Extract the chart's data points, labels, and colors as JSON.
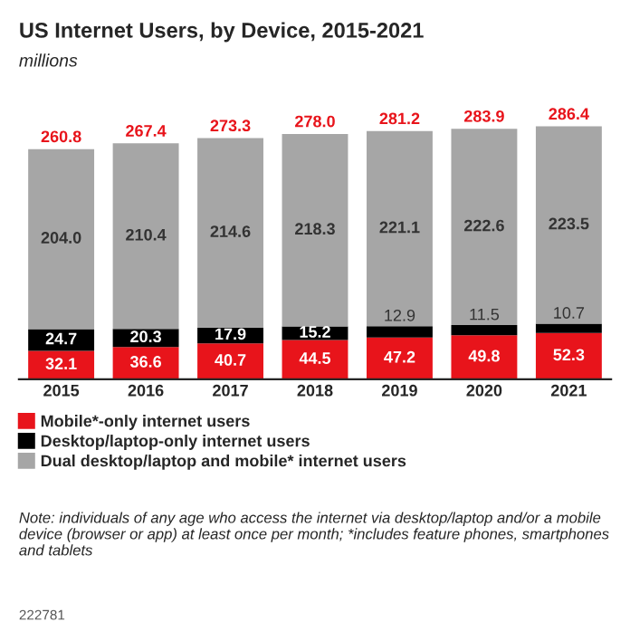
{
  "chart_data": {
    "type": "bar",
    "title": "US Internet Users, by Device, 2015-2021",
    "subtitle": "millions",
    "categories": [
      "2015",
      "2016",
      "2017",
      "2018",
      "2019",
      "2020",
      "2021"
    ],
    "stacked": true,
    "legend": "bottom",
    "series": [
      {
        "name": "Mobile*-only internet users",
        "color": "#e8141b",
        "values": [
          32.1,
          36.6,
          40.7,
          44.5,
          47.2,
          49.8,
          52.3
        ],
        "value_labels": [
          "32.1",
          "36.6",
          "40.7",
          "44.5",
          "47.2",
          "49.8",
          "52.3"
        ]
      },
      {
        "name": "Desktop/laptop-only internet users",
        "color": "#000000",
        "values": [
          24.7,
          20.3,
          17.9,
          15.2,
          12.9,
          11.5,
          10.7
        ],
        "value_labels": [
          "24.7",
          "20.3",
          "17.9",
          "15.2",
          "12.9",
          "11.5",
          "10.7"
        ]
      },
      {
        "name": "Dual desktop/laptop and mobile* internet users",
        "color": "#a6a6a6",
        "values": [
          204.0,
          210.4,
          214.6,
          218.3,
          221.1,
          222.6,
          223.5
        ],
        "value_labels": [
          "204.0",
          "210.4",
          "214.6",
          "218.3",
          "221.1",
          "222.6",
          "223.5"
        ]
      }
    ],
    "totals": [
      "260.8",
      "267.4",
      "273.3",
      "278.0",
      "281.2",
      "283.9",
      "286.4"
    ],
    "annotations": [
      "Note: individuals of any age who access the internet via desktop/laptop and/or a mobile device (browser or app) at least once per month; *includes feature phones, smartphones and tablets",
      "222781"
    ]
  }
}
